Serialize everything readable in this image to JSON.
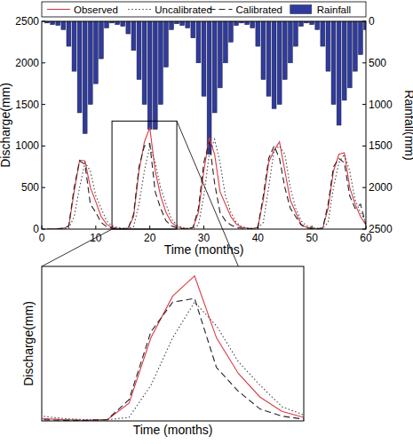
{
  "chart_data": [
    {
      "type": "line",
      "xlabel": "Time (months)",
      "ylabel": "Discharge(mm)",
      "y2label": "Rainfall(mm)",
      "xlim": [
        0,
        60
      ],
      "xticks": [
        0,
        10,
        20,
        30,
        40,
        50,
        60
      ],
      "ylim": [
        0,
        2500
      ],
      "yticks": [
        0,
        500,
        1000,
        1500,
        2000,
        2500
      ],
      "y2lim": [
        2500,
        0
      ],
      "y2ticks": [
        0,
        500,
        1000,
        1500,
        2000,
        2500
      ],
      "grid": false,
      "legend": "top",
      "x": [
        1,
        2,
        3,
        4,
        5,
        6,
        7,
        8,
        9,
        10,
        11,
        12,
        13,
        14,
        15,
        16,
        17,
        18,
        19,
        20,
        21,
        22,
        23,
        24,
        25,
        26,
        27,
        28,
        29,
        30,
        31,
        32,
        33,
        34,
        35,
        36,
        37,
        38,
        39,
        40,
        41,
        42,
        43,
        44,
        45,
        46,
        47,
        48,
        49,
        50,
        51,
        52,
        53,
        54,
        55,
        56,
        57,
        58,
        59,
        60
      ],
      "series": [
        {
          "name": "Observed",
          "color": "#d83a46",
          "type": "line",
          "line_style": "solid",
          "values": [
            0,
            0,
            5,
            10,
            30,
            450,
            830,
            820,
            500,
            330,
            150,
            60,
            20,
            10,
            5,
            10,
            150,
            700,
            1050,
            1220,
            700,
            400,
            200,
            80,
            30,
            10,
            5,
            20,
            200,
            700,
            1100,
            900,
            450,
            300,
            150,
            60,
            20,
            10,
            5,
            20,
            350,
            800,
            950,
            1050,
            700,
            350,
            200,
            60,
            20,
            10,
            5,
            10,
            250,
            700,
            900,
            920,
            500,
            300,
            150,
            50
          ]
        },
        {
          "name": "Uncalibrated",
          "color": "#444444",
          "type": "line",
          "line_style": "dotted",
          "values": [
            0,
            0,
            5,
            5,
            10,
            150,
            500,
            800,
            700,
            400,
            250,
            100,
            40,
            20,
            10,
            10,
            30,
            300,
            700,
            1000,
            800,
            500,
            300,
            120,
            50,
            20,
            10,
            10,
            50,
            400,
            900,
            1080,
            800,
            400,
            200,
            80,
            30,
            15,
            10,
            10,
            80,
            500,
            950,
            1000,
            900,
            500,
            250,
            100,
            40,
            20,
            10,
            10,
            80,
            500,
            800,
            900,
            700,
            350,
            200,
            80
          ]
        },
        {
          "name": "Calibrated",
          "color": "#222222",
          "type": "line",
          "line_style": "dashed",
          "values": [
            0,
            0,
            5,
            10,
            40,
            500,
            820,
            780,
            300,
            200,
            80,
            30,
            10,
            5,
            5,
            10,
            180,
            750,
            1000,
            1030,
            450,
            250,
            100,
            40,
            15,
            5,
            5,
            20,
            250,
            800,
            1050,
            550,
            200,
            100,
            50,
            20,
            10,
            5,
            5,
            20,
            400,
            850,
            1000,
            850,
            500,
            250,
            150,
            50,
            15,
            5,
            5,
            10,
            300,
            750,
            850,
            800,
            400,
            250,
            300,
            50
          ]
        },
        {
          "name": "Rainfall",
          "color": "#2f3b9c",
          "type": "bar",
          "axis": "y2",
          "values": [
            20,
            40,
            50,
            100,
            300,
            600,
            1100,
            1350,
            1000,
            750,
            450,
            80,
            20,
            40,
            60,
            150,
            350,
            700,
            1000,
            1300,
            1300,
            1000,
            550,
            100,
            30,
            50,
            80,
            200,
            500,
            900,
            1600,
            1100,
            800,
            500,
            250,
            50,
            20,
            40,
            80,
            300,
            700,
            900,
            1050,
            1000,
            700,
            500,
            300,
            60,
            20,
            40,
            100,
            300,
            600,
            1000,
            1250,
            950,
            800,
            600,
            400,
            100
          ]
        }
      ]
    },
    {
      "type": "line",
      "xlabel": "Time (months)",
      "ylabel": "Discharge(mm)",
      "xlim": [
        13,
        25
      ],
      "ylim": [
        0,
        1300
      ],
      "tick_labels": false
    }
  ]
}
